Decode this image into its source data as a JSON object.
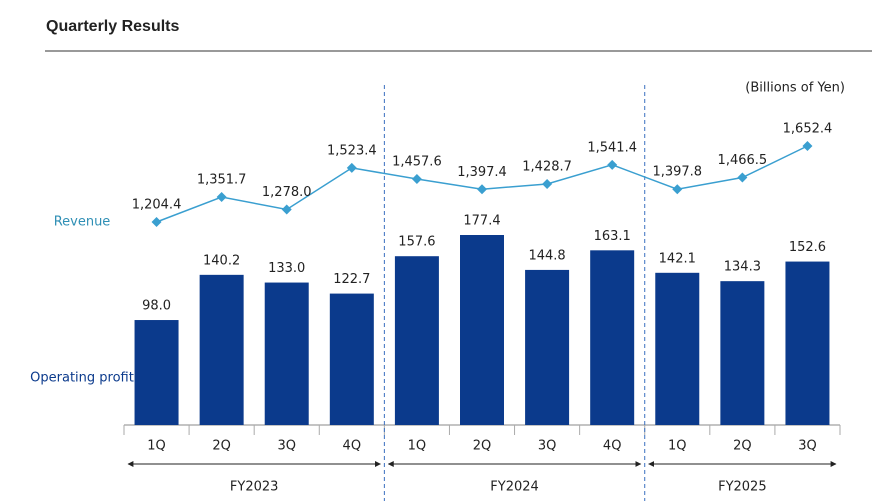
{
  "chart_data": {
    "type": "bar-line",
    "title": "Quarterly Results",
    "unit": "(Billions of Yen)",
    "groups": [
      {
        "name": "FY2023",
        "categories": [
          "1Q",
          "2Q",
          "3Q",
          "4Q"
        ]
      },
      {
        "name": "FY2024",
        "categories": [
          "1Q",
          "2Q",
          "3Q",
          "4Q"
        ]
      },
      {
        "name": "FY2025",
        "categories": [
          "1Q",
          "2Q",
          "3Q"
        ]
      }
    ],
    "series": [
      {
        "name": "Revenue",
        "type": "line",
        "color": "#3a9fd0",
        "values": [
          1204.4,
          1351.7,
          1278.0,
          1523.4,
          1457.6,
          1397.4,
          1428.7,
          1541.4,
          1397.8,
          1466.5,
          1652.4
        ],
        "value_labels": [
          "1,204.4",
          "1,351.7",
          "1,278.0",
          "1,523.4",
          "1,457.6",
          "1,397.4",
          "1,428.7",
          "1,541.4",
          "1,397.8",
          "1,466.5",
          "1,652.4"
        ]
      },
      {
        "name": "Operating profit",
        "type": "bar",
        "color": "#0b3a8c",
        "values": [
          98.0,
          140.2,
          133.0,
          122.7,
          157.6,
          177.4,
          144.8,
          163.1,
          142.1,
          134.3,
          152.6
        ],
        "value_labels": [
          "98.0",
          "140.2",
          "133.0",
          "122.7",
          "157.6",
          "177.4",
          "144.8",
          "163.1",
          "142.1",
          "134.3",
          "152.6"
        ]
      }
    ]
  }
}
